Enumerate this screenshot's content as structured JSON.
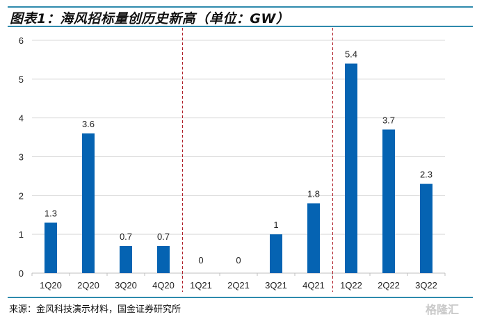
{
  "header": {
    "title": "图表1：海风招标量创历史新高（单位：GW）"
  },
  "footer": {
    "source": "来源：金风科技演示材料，国金证券研究所",
    "watermark": "格隆汇"
  },
  "colors": {
    "bar": "#0563b2",
    "rule": "#2e8aad",
    "divider": "#b0202a",
    "grid": "#d9d9d9"
  },
  "chart_data": {
    "type": "bar",
    "title": "海风招标量创历史新高（单位：GW）",
    "xlabel": "",
    "ylabel": "",
    "categories": [
      "1Q20",
      "2Q20",
      "3Q20",
      "4Q20",
      "1Q21",
      "2Q21",
      "3Q21",
      "4Q21",
      "1Q22",
      "2Q22",
      "3Q22"
    ],
    "values": [
      1.3,
      3.6,
      0.7,
      0.7,
      0,
      0,
      1,
      1.8,
      5.4,
      3.7,
      2.3
    ],
    "data_labels": [
      "1.3",
      "3.6",
      "0.7",
      "0.7",
      "0",
      "0",
      "1",
      "1.8",
      "5.4",
      "3.7",
      "2.3"
    ],
    "ylim": [
      0,
      6
    ],
    "yticks": [
      "0",
      "1",
      "2",
      "3",
      "4",
      "5",
      "6"
    ],
    "grid": true,
    "legend": "none",
    "dividers_after_category": [
      "4Q20",
      "4Q21"
    ]
  }
}
